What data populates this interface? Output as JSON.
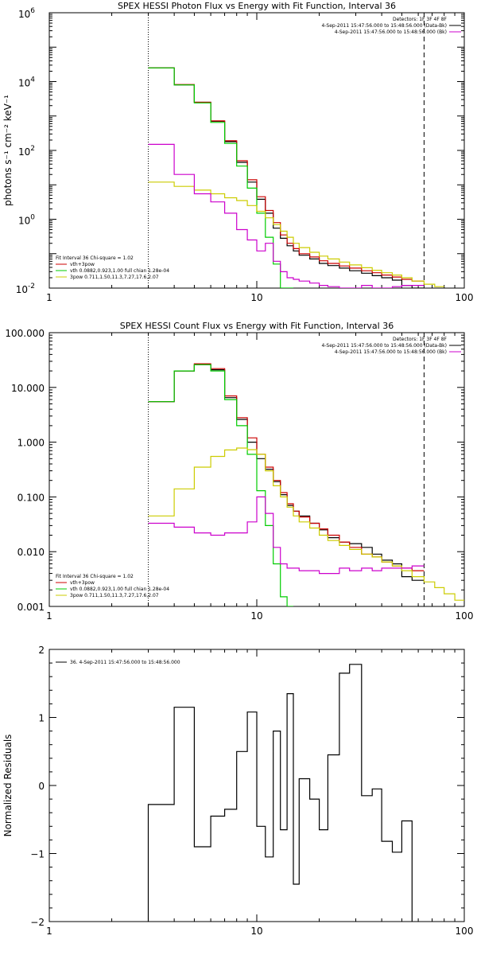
{
  "chart_data": [
    {
      "type": "line",
      "title": "SPEX HESSI Photon Flux vs Energy with Fit Function, Interval 36",
      "ylabel": "photons s⁻¹ cm⁻² keV⁻¹",
      "xlabel": "",
      "xscale": "log",
      "yscale": "log",
      "xlim": [
        1,
        100
      ],
      "ylim": [
        0.01,
        1000000
      ],
      "x_ticks": [
        {
          "v": 1,
          "label": "1"
        },
        {
          "v": 10,
          "label": "10"
        },
        {
          "v": 100,
          "label": "100"
        }
      ],
      "y_ticks": [
        {
          "v": 0.01,
          "base": "10",
          "exp": "-2"
        },
        {
          "v": 1,
          "base": "10",
          "exp": "0"
        },
        {
          "v": 100,
          "base": "10",
          "exp": "2"
        },
        {
          "v": 10000,
          "base": "10",
          "exp": "4"
        },
        {
          "v": 1000000,
          "base": "10",
          "exp": "6"
        }
      ],
      "vlines": [
        {
          "x": 3,
          "style": "dotted"
        },
        {
          "x": 64,
          "style": "dashed"
        }
      ],
      "legend_tr": [
        {
          "text": "Detectors: 1F 3F 4F 8F",
          "color": ""
        },
        {
          "text": "4-Sep-2011 15:47:56.000 to 15:48:56.000 (Data-Bk)",
          "color": "#000000"
        },
        {
          "text": "4-Sep-2011 15:47:56.000 to 15:48:56.000 (Bk)",
          "color": "#cc00cc"
        }
      ],
      "legend_bl": [
        {
          "text": "Fit Interval 36   Chi-square = 1.02",
          "color": ""
        },
        {
          "text": "vth+3pow",
          "color": "#cc0000"
        },
        {
          "text": "vth 0.0882,0.923,1.00  full chian 1.28e-04",
          "color": "#00cc00"
        },
        {
          "text": "3pow 0.711,1.50,11.3,7.27,17.6,2.07",
          "color": "#cccc00"
        }
      ],
      "edges": [
        3,
        4,
        5,
        6,
        7,
        8,
        9,
        10,
        11,
        12,
        13,
        14,
        15,
        16,
        18,
        20,
        22,
        25,
        28,
        32,
        36,
        40,
        45,
        50,
        56,
        64,
        72,
        80
      ],
      "series": [
        {
          "name": "Data-Bk",
          "color": "#000000",
          "values": [
            25000,
            8000,
            2500,
            700,
            180,
            45,
            12,
            3.8,
            1.5,
            0.55,
            0.28,
            0.17,
            0.12,
            0.09,
            0.07,
            0.052,
            0.045,
            0.038,
            0.032,
            0.027,
            0.023,
            0.02,
            0.017,
            0.012,
            0.009
          ]
        },
        {
          "name": "vth+3pow",
          "color": "#cc0000",
          "values": [
            25000,
            8200,
            2500,
            720,
            190,
            50,
            14,
            4.5,
            1.8,
            0.8,
            0.35,
            0.2,
            0.14,
            0.1,
            0.08,
            0.062,
            0.052,
            0.044,
            0.038,
            0.032,
            0.028,
            0.024,
            0.021,
            0.018,
            0.016
          ]
        },
        {
          "name": "vth",
          "color": "#00cc00",
          "values": [
            25000,
            8000,
            2400,
            650,
            160,
            35,
            8,
            1.5,
            0.3,
            0.05,
            0.01,
            0.002
          ]
        },
        {
          "name": "3pow",
          "color": "#cccc00",
          "values": [
            12,
            9,
            7,
            5.5,
            4.2,
            3.5,
            2.5,
            1.7,
            1.1,
            0.7,
            0.45,
            0.3,
            0.2,
            0.15,
            0.11,
            0.085,
            0.07,
            0.057,
            0.047,
            0.039,
            0.033,
            0.028,
            0.024,
            0.02,
            0.016,
            0.013,
            0.011
          ]
        },
        {
          "name": "Bk",
          "color": "#cc00cc",
          "values": [
            150,
            20,
            5.5,
            3.2,
            1.5,
            0.5,
            0.25,
            0.12,
            0.2,
            0.06,
            0.03,
            0.02,
            0.018,
            0.016,
            0.014,
            0.012,
            0.011,
            0.01,
            0.01,
            0.012,
            0.01,
            0.01,
            0.011,
            0.012,
            0.012
          ]
        }
      ]
    },
    {
      "type": "line",
      "title": "SPEX HESSI Count Flux vs Energy with Fit Function, Interval 36",
      "ylabel": "",
      "xlabel": "",
      "xscale": "log",
      "yscale": "log",
      "xlim": [
        1,
        100
      ],
      "ylim": [
        0.001,
        100
      ],
      "x_ticks": [
        {
          "v": 1,
          "label": "1"
        },
        {
          "v": 10,
          "label": "10"
        },
        {
          "v": 100,
          "label": "100"
        }
      ],
      "y_ticks": [
        {
          "v": 0.001,
          "label": "0.001"
        },
        {
          "v": 0.01,
          "label": "0.010"
        },
        {
          "v": 0.1,
          "label": "0.100"
        },
        {
          "v": 1,
          "label": "1.000"
        },
        {
          "v": 10,
          "label": "10.000"
        },
        {
          "v": 100,
          "label": "100.000"
        }
      ],
      "vlines": [
        {
          "x": 3,
          "style": "dotted"
        },
        {
          "x": 64,
          "style": "dashed"
        }
      ],
      "legend_tr": [
        {
          "text": "Detectors: 1F 3F 4F 8F",
          "color": ""
        },
        {
          "text": "4-Sep-2011 15:47:56.000 to 15:48:56.000 (Data-Bk)",
          "color": "#000000"
        },
        {
          "text": "4-Sep-2011 15:47:56.000 to 15:48:56.000 (Bk)",
          "color": "#cc00cc"
        }
      ],
      "legend_bl": [
        {
          "text": "Fit Interval 36   Chi-square = 1.02",
          "color": ""
        },
        {
          "text": "vth+3pow",
          "color": "#cc0000"
        },
        {
          "text": "vth 0.0882,0.923,1.00  full chian 1.28e-04",
          "color": "#00cc00"
        },
        {
          "text": "3pow 0.711,1.50,11.3,7.27,17.6,2.07",
          "color": "#cccc00"
        }
      ],
      "edges": [
        3,
        4,
        5,
        6,
        7,
        8,
        9,
        10,
        11,
        12,
        13,
        14,
        15,
        16,
        18,
        20,
        22,
        25,
        28,
        32,
        36,
        40,
        45,
        50,
        56,
        64,
        72,
        80,
        90,
        100
      ],
      "series": [
        {
          "name": "Data-Bk",
          "color": "#000000",
          "values": [
            5.5,
            20,
            26,
            21,
            6.5,
            2.6,
            1.0,
            0.5,
            0.32,
            0.19,
            0.11,
            0.07,
            0.055,
            0.045,
            0.033,
            0.025,
            0.018,
            0.015,
            0.014,
            0.012,
            0.009,
            0.007,
            0.006,
            0.0035,
            0.003
          ]
        },
        {
          "name": "vth+3pow",
          "color": "#cc0000",
          "values": [
            5.5,
            20,
            27,
            22,
            7,
            2.8,
            1.2,
            0.6,
            0.35,
            0.2,
            0.12,
            0.075,
            0.055,
            0.043,
            0.033,
            0.026,
            0.02,
            0.015,
            0.012,
            0.009,
            0.008,
            0.0065,
            0.0055,
            0.005,
            0.0045
          ]
        },
        {
          "name": "vth",
          "color": "#00cc00",
          "values": [
            5.5,
            20,
            26,
            20,
            6,
            2,
            0.6,
            0.13,
            0.03,
            0.006,
            0.0015,
            0.0006
          ]
        },
        {
          "name": "3pow",
          "color": "#cccc00",
          "values": [
            0.045,
            0.14,
            0.35,
            0.55,
            0.72,
            0.78,
            0.73,
            0.6,
            0.3,
            0.16,
            0.1,
            0.065,
            0.045,
            0.035,
            0.027,
            0.02,
            0.016,
            0.013,
            0.011,
            0.009,
            0.008,
            0.0065,
            0.0055,
            0.0045,
            0.0035,
            0.0028,
            0.0022,
            0.0017,
            0.0013
          ]
        },
        {
          "name": "Bk",
          "color": "#cc00cc",
          "values": [
            0.033,
            0.028,
            0.022,
            0.02,
            0.022,
            0.022,
            0.035,
            0.1,
            0.05,
            0.012,
            0.006,
            0.005,
            0.005,
            0.0045,
            0.0045,
            0.004,
            0.004,
            0.005,
            0.0045,
            0.005,
            0.0045,
            0.005,
            0.005,
            0.005,
            0.0055
          ]
        }
      ]
    },
    {
      "type": "line",
      "title": "",
      "ylabel": "Normalized Residuals",
      "xlabel": "",
      "xscale": "log",
      "yscale": "linear",
      "xlim": [
        1,
        100
      ],
      "ylim": [
        -2,
        2
      ],
      "x_ticks": [
        {
          "v": 1,
          "label": "1"
        },
        {
          "v": 10,
          "label": "10"
        },
        {
          "v": 100,
          "label": "100"
        }
      ],
      "y_ticks": [
        {
          "v": -2,
          "label": "−2"
        },
        {
          "v": -1,
          "label": "−1"
        },
        {
          "v": 0,
          "label": "0"
        },
        {
          "v": 1,
          "label": "1"
        },
        {
          "v": 2,
          "label": "2"
        }
      ],
      "vlines": [],
      "legend_tr": [],
      "legend_bl": [],
      "legend_tl": [
        {
          "text": "36.  4-Sep-2011 15:47:56.000 to 15:48:56.000",
          "color": "#000000"
        }
      ],
      "edges": [
        3,
        4,
        5,
        6,
        7,
        8,
        9,
        10,
        11,
        12,
        13,
        14,
        15,
        16,
        18,
        20,
        22,
        25,
        28,
        32,
        36,
        40,
        45,
        50,
        56,
        64
      ],
      "drop_to_floor": true,
      "series": [
        {
          "name": "36",
          "color": "#000000",
          "values": [
            -0.28,
            1.15,
            -0.9,
            -0.45,
            -0.35,
            0.5,
            1.08,
            -0.6,
            -1.05,
            0.8,
            -0.65,
            1.35,
            -1.45,
            0.1,
            -0.2,
            -0.65,
            0.45,
            1.65,
            1.78,
            -0.15,
            -0.05,
            -0.82,
            -0.98,
            -0.52
          ]
        }
      ]
    }
  ]
}
